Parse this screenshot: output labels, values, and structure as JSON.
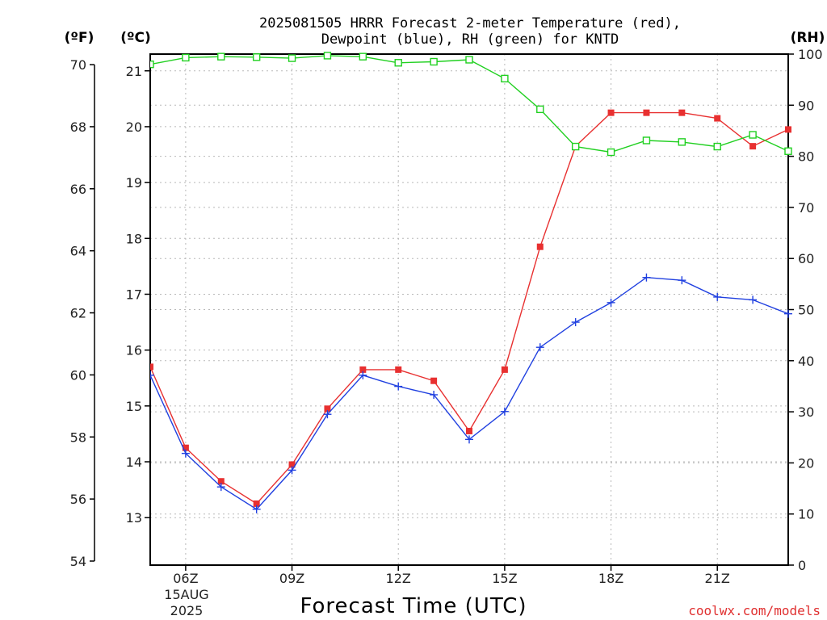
{
  "chart_data": {
    "type": "line",
    "title_line1": "2025081505 HRRR Forecast 2-meter Temperature (red),",
    "title_line2": "Dewpoint (blue), RH (green) for KNTD",
    "unit_f": "(ºF)",
    "unit_c": "(ºC)",
    "unit_rh": "(RH)",
    "xlabel": "Forecast Time (UTC)",
    "credit": "coolwx.com/models",
    "x_hours": [
      5,
      6,
      7,
      8,
      9,
      10,
      11,
      12,
      13,
      14,
      15,
      16,
      17,
      18,
      19,
      20,
      21,
      22,
      23
    ],
    "x_ticks": [
      {
        "hour": 6,
        "label": "06Z"
      },
      {
        "hour": 9,
        "label": "09Z"
      },
      {
        "hour": 12,
        "label": "12Z"
      },
      {
        "hour": 15,
        "label": "15Z"
      },
      {
        "hour": 18,
        "label": "18Z"
      },
      {
        "hour": 21,
        "label": "21Z"
      }
    ],
    "date_label_1": "15AUG",
    "date_label_2": "2025",
    "xlim": [
      5,
      23
    ],
    "celsius_ticks": [
      13,
      14,
      15,
      16,
      17,
      18,
      19,
      20,
      21
    ],
    "fahrenheit_ticks": [
      54,
      56,
      58,
      60,
      62,
      64,
      66,
      68,
      70
    ],
    "rh_ticks": [
      0,
      10,
      20,
      30,
      40,
      50,
      60,
      70,
      80,
      90,
      100
    ],
    "ylim_celsius": [
      12.15,
      21.3
    ],
    "ylim_rh": [
      0,
      100
    ],
    "grid": true,
    "series": [
      {
        "name": "Temperature",
        "axis": "celsius",
        "color": "#e83030",
        "marker": "filled-square",
        "values": [
          15.7,
          14.25,
          13.65,
          13.25,
          13.95,
          14.95,
          15.65,
          15.65,
          15.45,
          14.55,
          15.65,
          17.85,
          19.65,
          20.25,
          20.25,
          20.25,
          20.15,
          19.65,
          19.95
        ]
      },
      {
        "name": "Dewpoint",
        "axis": "celsius",
        "color": "#2040e0",
        "marker": "plus",
        "values": [
          15.55,
          14.15,
          13.55,
          13.15,
          13.85,
          14.85,
          15.55,
          15.35,
          15.2,
          14.4,
          14.9,
          16.05,
          16.5,
          16.85,
          17.3,
          17.25,
          16.95,
          16.9,
          16.65
        ]
      },
      {
        "name": "RH",
        "axis": "rh",
        "color": "#20d020",
        "marker": "open-square",
        "values": [
          98,
          99.3,
          99.5,
          99.4,
          99.2,
          99.7,
          99.5,
          98.3,
          98.5,
          98.9,
          95.2,
          89.2,
          81.9,
          80.8,
          83.1,
          82.8,
          81.9,
          84.2,
          81
        ]
      }
    ]
  }
}
